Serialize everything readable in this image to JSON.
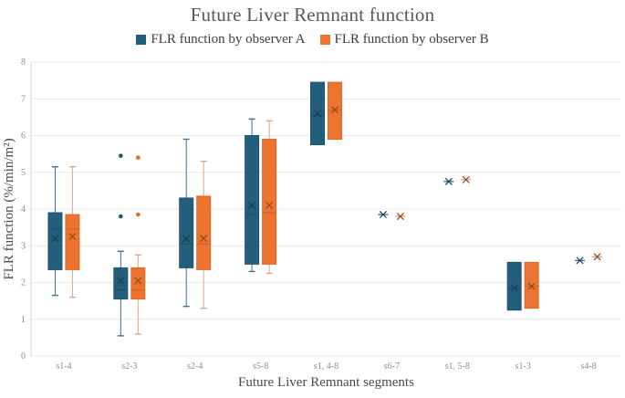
{
  "title": "Future Liver Remnant function",
  "legend": [
    {
      "label": "FLR function by observer A",
      "color": "#235F7D"
    },
    {
      "label": "FLR function by observer B",
      "color": "#EC7430"
    }
  ],
  "chart_data": {
    "type": "boxplot",
    "title": "Future Liver Remnant function",
    "xlabel": "Future Liver Remnant segments",
    "ylabel": "FLR function (%/min/m²)",
    "ylim": [
      0,
      8
    ],
    "ytick_step": 1,
    "grid": true,
    "legend_position": "top",
    "categories": [
      "s1-4",
      "s2-3",
      "s2-4",
      "s5-8",
      "s1, 4-8",
      "s6-7",
      "s1, 5-8",
      "s1-3",
      "s4-8"
    ],
    "series": [
      {
        "name": "FLR function by observer A",
        "color": "#235F7D",
        "border": "#1E556F",
        "whisker": "#3D7390",
        "median_color": "#1A4C63",
        "mean_color": "#16404F",
        "boxes": [
          {
            "low": 1.65,
            "q1": 2.35,
            "median": 3.45,
            "q3": 3.9,
            "high": 5.15,
            "mean": 3.2,
            "outliers": []
          },
          {
            "low": 0.55,
            "q1": 1.55,
            "median": 1.8,
            "q3": 2.4,
            "high": 2.85,
            "mean": 2.05,
            "outliers": [
              5.45,
              3.8
            ]
          },
          {
            "low": 1.35,
            "q1": 2.4,
            "median": 3.05,
            "q3": 4.3,
            "high": 5.9,
            "mean": 3.2,
            "outliers": []
          },
          {
            "low": 2.3,
            "q1": 2.5,
            "median": 3.85,
            "q3": 6.0,
            "high": 6.45,
            "mean": 4.1,
            "outliers": []
          },
          {
            "low": 5.75,
            "q1": 5.75,
            "median": 6.55,
            "q3": 7.45,
            "high": 7.45,
            "mean": 6.6,
            "outliers": []
          },
          {
            "low": 3.85,
            "q1": 3.85,
            "median": 3.85,
            "q3": 3.85,
            "high": 3.85,
            "mean": 3.85,
            "outliers": []
          },
          {
            "low": 4.75,
            "q1": 4.75,
            "median": 4.75,
            "q3": 4.75,
            "high": 4.75,
            "mean": 4.75,
            "outliers": []
          },
          {
            "low": 1.25,
            "q1": 1.25,
            "median": 1.85,
            "q3": 2.55,
            "high": 2.55,
            "mean": 1.85,
            "outliers": []
          },
          {
            "low": 2.6,
            "q1": 2.6,
            "median": 2.6,
            "q3": 2.6,
            "high": 2.6,
            "mean": 2.6,
            "outliers": []
          }
        ]
      },
      {
        "name": "FLR function by observer B",
        "color": "#EC7430",
        "border": "#DD6827",
        "whisker": "#DBA888",
        "median_color": "#D05F1E",
        "mean_color": "#8C4A20",
        "boxes": [
          {
            "low": 1.6,
            "q1": 2.35,
            "median": 3.45,
            "q3": 3.85,
            "high": 5.15,
            "mean": 3.25,
            "outliers": []
          },
          {
            "low": 0.6,
            "q1": 1.55,
            "median": 1.8,
            "q3": 2.4,
            "high": 2.75,
            "mean": 2.05,
            "outliers": [
              5.4,
              3.85
            ]
          },
          {
            "low": 1.3,
            "q1": 2.35,
            "median": 3.05,
            "q3": 4.35,
            "high": 5.3,
            "mean": 3.2,
            "outliers": []
          },
          {
            "low": 2.25,
            "q1": 2.5,
            "median": 3.9,
            "q3": 5.9,
            "high": 6.4,
            "mean": 4.1,
            "outliers": []
          },
          {
            "low": 5.9,
            "q1": 5.9,
            "median": 6.7,
            "q3": 7.45,
            "high": 7.45,
            "mean": 6.7,
            "outliers": []
          },
          {
            "low": 3.8,
            "q1": 3.8,
            "median": 3.8,
            "q3": 3.8,
            "high": 3.8,
            "mean": 3.8,
            "outliers": []
          },
          {
            "low": 4.8,
            "q1": 4.8,
            "median": 4.8,
            "q3": 4.8,
            "high": 4.8,
            "mean": 4.8,
            "outliers": []
          },
          {
            "low": 1.3,
            "q1": 1.3,
            "median": 1.9,
            "q3": 2.55,
            "high": 2.55,
            "mean": 1.9,
            "outliers": []
          },
          {
            "low": 2.7,
            "q1": 2.7,
            "median": 2.7,
            "q3": 2.7,
            "high": 2.7,
            "mean": 2.7,
            "outliers": []
          }
        ]
      }
    ],
    "colors": {
      "gridline": "#E9E9E9",
      "axis_line": "#D6D6D6",
      "title_text": "#595959",
      "tick_text": "#8C8C8C",
      "axis_title_text": "#4A4A4A"
    }
  }
}
